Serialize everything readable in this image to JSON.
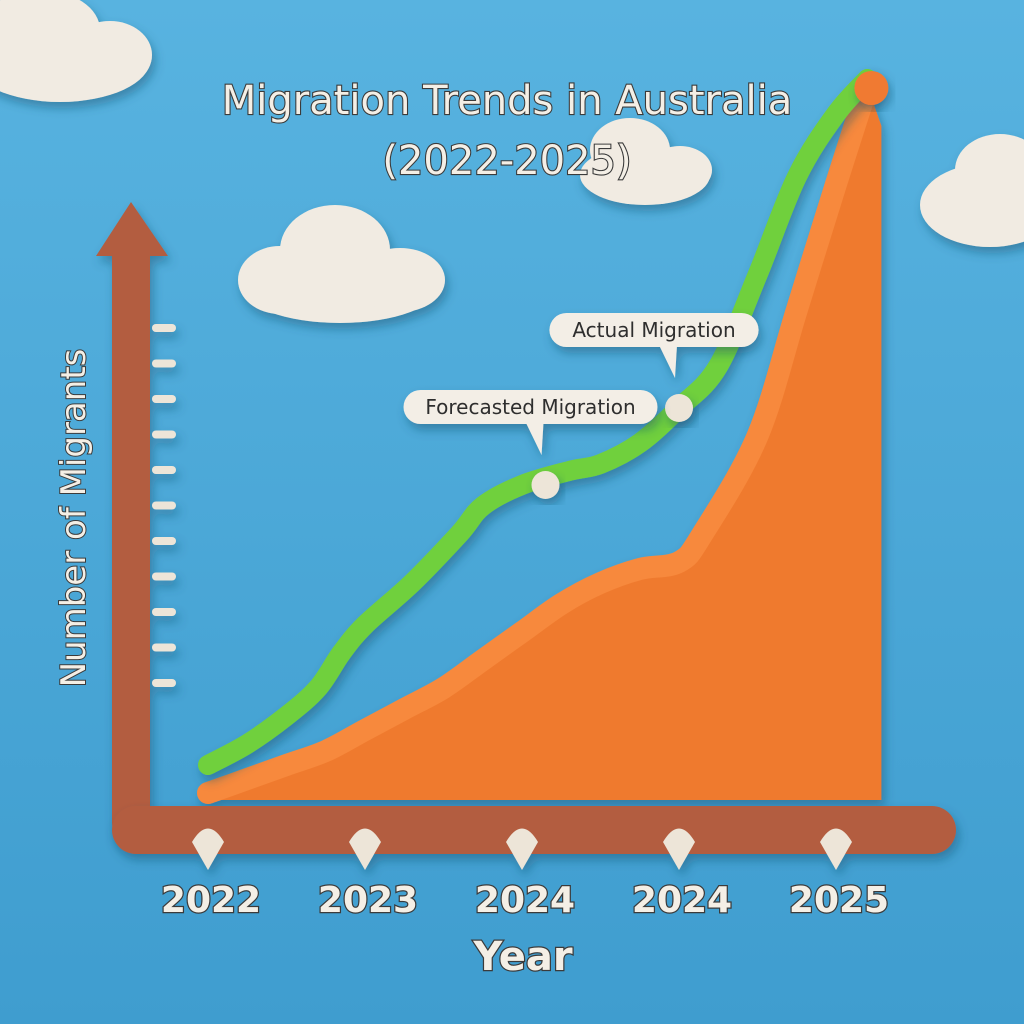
{
  "chart_data": {
    "type": "area",
    "title": "Migration Trends in Australia",
    "subtitle": "(2022-2025)",
    "xlabel": "Year",
    "ylabel": "Number of Migrants",
    "categories": [
      "2022",
      "2023",
      "2024",
      "2024",
      "2025"
    ],
    "ylim": [
      0,
      100
    ],
    "grid": false,
    "series": [
      {
        "name": "Forecasted Migration",
        "kind": "line",
        "color": "#6fd03e",
        "x": [
          0,
          0.25,
          0.5,
          0.7,
          0.85,
          1.0,
          1.3,
          1.6,
          1.75,
          2.0,
          2.3,
          2.5,
          2.75,
          3.0,
          3.25,
          3.5,
          3.75,
          4.0,
          4.2
        ],
        "values": [
          5,
          8,
          12,
          16,
          21,
          25,
          31,
          38,
          42,
          45,
          47,
          48,
          51,
          56,
          62,
          75,
          89,
          98,
          103
        ]
      },
      {
        "name": "Actual Migration",
        "kind": "area",
        "color": "#ef7a2e",
        "x": [
          0,
          0.25,
          0.5,
          0.75,
          1.0,
          1.25,
          1.5,
          1.75,
          2.0,
          2.25,
          2.5,
          2.75,
          3.0,
          3.15,
          3.5,
          3.75,
          4.0,
          4.2
        ],
        "values": [
          1,
          3,
          5,
          7,
          10,
          13,
          16,
          20,
          24,
          28,
          31,
          33,
          34,
          38,
          52,
          70,
          88,
          102
        ]
      }
    ],
    "annotations": [
      {
        "text": "Actual Migration",
        "x": 3.0,
        "y": 56
      },
      {
        "text": "Forecasted Migration",
        "x": 2.15,
        "y": 45
      }
    ]
  },
  "colors": {
    "background": "#4aa6d6",
    "axis": "#b35d3f",
    "tick": "#ede5d8",
    "cloud": "#f1ebe2"
  }
}
